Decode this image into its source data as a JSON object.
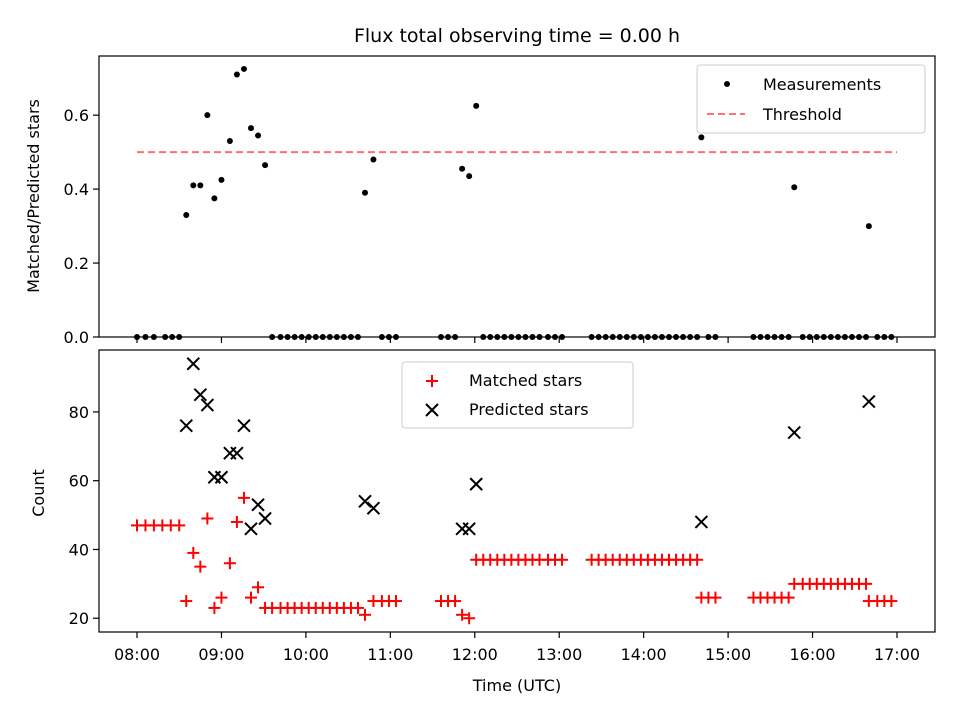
{
  "chart_data": [
    {
      "type": "scatter",
      "title": "Flux total observing time = 0.00 h",
      "xlabel": "",
      "ylabel": "Matched/Predicted stars",
      "xlim": [
        "07:33",
        "17:27"
      ],
      "ylim": [
        0,
        0.76
      ],
      "yticks": [
        0.0,
        0.2,
        0.4,
        0.6
      ],
      "ytick_labels": [
        "0.0",
        "0.2",
        "0.4",
        "0.6"
      ],
      "grid": false,
      "legend": "top-right",
      "series": [
        {
          "name": "Measurements",
          "marker": "dot",
          "color": "#000000",
          "points": [
            [
              "08:00",
              0
            ],
            [
              "08:06",
              0
            ],
            [
              "08:12",
              0
            ],
            [
              "08:20",
              0
            ],
            [
              "08:25",
              0
            ],
            [
              "08:30",
              0
            ],
            [
              "08:35",
              0.33
            ],
            [
              "08:40",
              0.41
            ],
            [
              "08:45",
              0.41
            ],
            [
              "08:50",
              0.6
            ],
            [
              "08:55",
              0.375
            ],
            [
              "09:00",
              0.425
            ],
            [
              "09:06",
              0.53
            ],
            [
              "09:11",
              0.71
            ],
            [
              "09:16",
              0.725
            ],
            [
              "09:21",
              0.565
            ],
            [
              "09:26",
              0.545
            ],
            [
              "09:31",
              0.465
            ],
            [
              "09:36",
              0
            ],
            [
              "09:42",
              0
            ],
            [
              "09:47",
              0
            ],
            [
              "09:52",
              0
            ],
            [
              "09:57",
              0
            ],
            [
              "10:02",
              0
            ],
            [
              "10:07",
              0
            ],
            [
              "10:12",
              0
            ],
            [
              "10:17",
              0
            ],
            [
              "10:22",
              0
            ],
            [
              "10:27",
              0
            ],
            [
              "10:32",
              0
            ],
            [
              "10:37",
              0
            ],
            [
              "10:42",
              0.39
            ],
            [
              "10:48",
              0.48
            ],
            [
              "10:54",
              0
            ],
            [
              "10:59",
              0
            ],
            [
              "11:04",
              0
            ],
            [
              "11:36",
              0
            ],
            [
              "11:41",
              0
            ],
            [
              "11:46",
              0
            ],
            [
              "11:51",
              0.455
            ],
            [
              "11:56",
              0.435
            ],
            [
              "12:01",
              0.625
            ],
            [
              "12:06",
              0
            ],
            [
              "12:11",
              0
            ],
            [
              "12:16",
              0
            ],
            [
              "12:21",
              0
            ],
            [
              "12:26",
              0
            ],
            [
              "12:31",
              0
            ],
            [
              "12:36",
              0
            ],
            [
              "12:41",
              0
            ],
            [
              "12:46",
              0
            ],
            [
              "12:52",
              0
            ],
            [
              "12:57",
              0
            ],
            [
              "13:02",
              0
            ],
            [
              "13:23",
              0
            ],
            [
              "13:28",
              0
            ],
            [
              "13:33",
              0
            ],
            [
              "13:38",
              0
            ],
            [
              "13:43",
              0
            ],
            [
              "13:48",
              0
            ],
            [
              "13:53",
              0
            ],
            [
              "13:58",
              0
            ],
            [
              "14:03",
              0
            ],
            [
              "14:08",
              0
            ],
            [
              "14:13",
              0
            ],
            [
              "14:18",
              0
            ],
            [
              "14:23",
              0
            ],
            [
              "14:28",
              0
            ],
            [
              "14:33",
              0
            ],
            [
              "14:38",
              0
            ],
            [
              "14:41",
              0.54
            ],
            [
              "14:46",
              0
            ],
            [
              "14:51",
              0
            ],
            [
              "15:18",
              0
            ],
            [
              "15:23",
              0
            ],
            [
              "15:28",
              0
            ],
            [
              "15:33",
              0
            ],
            [
              "15:38",
              0
            ],
            [
              "15:43",
              0
            ],
            [
              "15:47",
              0.405
            ],
            [
              "15:53",
              0
            ],
            [
              "15:58",
              0
            ],
            [
              "16:03",
              0
            ],
            [
              "16:08",
              0
            ],
            [
              "16:13",
              0
            ],
            [
              "16:18",
              0
            ],
            [
              "16:23",
              0
            ],
            [
              "16:28",
              0
            ],
            [
              "16:33",
              0
            ],
            [
              "16:38",
              0
            ],
            [
              "16:40",
              0.3
            ],
            [
              "16:46",
              0
            ],
            [
              "16:51",
              0
            ],
            [
              "16:56",
              0
            ]
          ]
        },
        {
          "name": "Threshold",
          "line_style": "dashed",
          "color": "#ff7070",
          "points": [
            [
              "08:00",
              0.5
            ],
            [
              "17:00",
              0.5
            ]
          ]
        }
      ]
    },
    {
      "type": "scatter",
      "title": "",
      "xlabel": "Time (UTC)",
      "ylabel": "Count",
      "xlim": [
        "07:33",
        "17:27"
      ],
      "ylim": [
        16,
        98
      ],
      "yticks": [
        20,
        40,
        60,
        80
      ],
      "ytick_labels": [
        "20",
        "40",
        "60",
        "80"
      ],
      "xticks": [
        "08:00",
        "09:00",
        "10:00",
        "11:00",
        "12:00",
        "13:00",
        "14:00",
        "15:00",
        "16:00",
        "17:00"
      ],
      "grid": false,
      "legend": "top-center",
      "series": [
        {
          "name": "Matched stars",
          "marker": "plus",
          "color": "#ff0000",
          "points": [
            [
              "08:00",
              47
            ],
            [
              "08:06",
              47
            ],
            [
              "08:12",
              47
            ],
            [
              "08:18",
              47
            ],
            [
              "08:24",
              47
            ],
            [
              "08:30",
              47
            ],
            [
              "08:35",
              25
            ],
            [
              "08:40",
              39
            ],
            [
              "08:45",
              35
            ],
            [
              "08:50",
              49
            ],
            [
              "08:55",
              23
            ],
            [
              "09:00",
              26
            ],
            [
              "09:06",
              36
            ],
            [
              "09:11",
              48
            ],
            [
              "09:16",
              55
            ],
            [
              "09:21",
              26
            ],
            [
              "09:26",
              29
            ],
            [
              "09:31",
              23
            ],
            [
              "09:36",
              23
            ],
            [
              "09:42",
              23
            ],
            [
              "09:47",
              23
            ],
            [
              "09:52",
              23
            ],
            [
              "09:57",
              23
            ],
            [
              "10:02",
              23
            ],
            [
              "10:07",
              23
            ],
            [
              "10:12",
              23
            ],
            [
              "10:17",
              23
            ],
            [
              "10:22",
              23
            ],
            [
              "10:27",
              23
            ],
            [
              "10:32",
              23
            ],
            [
              "10:37",
              23
            ],
            [
              "10:42",
              21
            ],
            [
              "10:48",
              25
            ],
            [
              "10:54",
              25
            ],
            [
              "10:59",
              25
            ],
            [
              "11:04",
              25
            ],
            [
              "11:36",
              25
            ],
            [
              "11:41",
              25
            ],
            [
              "11:46",
              25
            ],
            [
              "11:51",
              21
            ],
            [
              "11:56",
              20
            ],
            [
              "12:01",
              37
            ],
            [
              "12:06",
              37
            ],
            [
              "12:11",
              37
            ],
            [
              "12:16",
              37
            ],
            [
              "12:21",
              37
            ],
            [
              "12:26",
              37
            ],
            [
              "12:31",
              37
            ],
            [
              "12:36",
              37
            ],
            [
              "12:41",
              37
            ],
            [
              "12:46",
              37
            ],
            [
              "12:52",
              37
            ],
            [
              "12:57",
              37
            ],
            [
              "13:02",
              37
            ],
            [
              "13:23",
              37
            ],
            [
              "13:28",
              37
            ],
            [
              "13:33",
              37
            ],
            [
              "13:38",
              37
            ],
            [
              "13:43",
              37
            ],
            [
              "13:48",
              37
            ],
            [
              "13:53",
              37
            ],
            [
              "13:58",
              37
            ],
            [
              "14:03",
              37
            ],
            [
              "14:08",
              37
            ],
            [
              "14:13",
              37
            ],
            [
              "14:18",
              37
            ],
            [
              "14:23",
              37
            ],
            [
              "14:28",
              37
            ],
            [
              "14:33",
              37
            ],
            [
              "14:38",
              37
            ],
            [
              "14:41",
              26
            ],
            [
              "14:46",
              26
            ],
            [
              "14:51",
              26
            ],
            [
              "15:18",
              26
            ],
            [
              "15:23",
              26
            ],
            [
              "15:28",
              26
            ],
            [
              "15:33",
              26
            ],
            [
              "15:38",
              26
            ],
            [
              "15:43",
              26
            ],
            [
              "15:47",
              30
            ],
            [
              "15:53",
              30
            ],
            [
              "15:58",
              30
            ],
            [
              "16:03",
              30
            ],
            [
              "16:08",
              30
            ],
            [
              "16:13",
              30
            ],
            [
              "16:18",
              30
            ],
            [
              "16:23",
              30
            ],
            [
              "16:28",
              30
            ],
            [
              "16:33",
              30
            ],
            [
              "16:38",
              30
            ],
            [
              "16:40",
              25
            ],
            [
              "16:46",
              25
            ],
            [
              "16:51",
              25
            ],
            [
              "16:56",
              25
            ]
          ]
        },
        {
          "name": "Predicted stars",
          "marker": "x",
          "color": "#000000",
          "points": [
            [
              "08:35",
              76
            ],
            [
              "08:40",
              94
            ],
            [
              "08:45",
              85
            ],
            [
              "08:50",
              82
            ],
            [
              "08:55",
              61
            ],
            [
              "09:00",
              61
            ],
            [
              "09:06",
              68
            ],
            [
              "09:11",
              68
            ],
            [
              "09:16",
              76
            ],
            [
              "09:21",
              46
            ],
            [
              "09:26",
              53
            ],
            [
              "09:31",
              49
            ],
            [
              "10:42",
              54
            ],
            [
              "10:48",
              52
            ],
            [
              "11:51",
              46
            ],
            [
              "11:56",
              46
            ],
            [
              "12:01",
              59
            ],
            [
              "14:41",
              48
            ],
            [
              "15:47",
              74
            ],
            [
              "16:40",
              83
            ]
          ]
        }
      ]
    }
  ]
}
